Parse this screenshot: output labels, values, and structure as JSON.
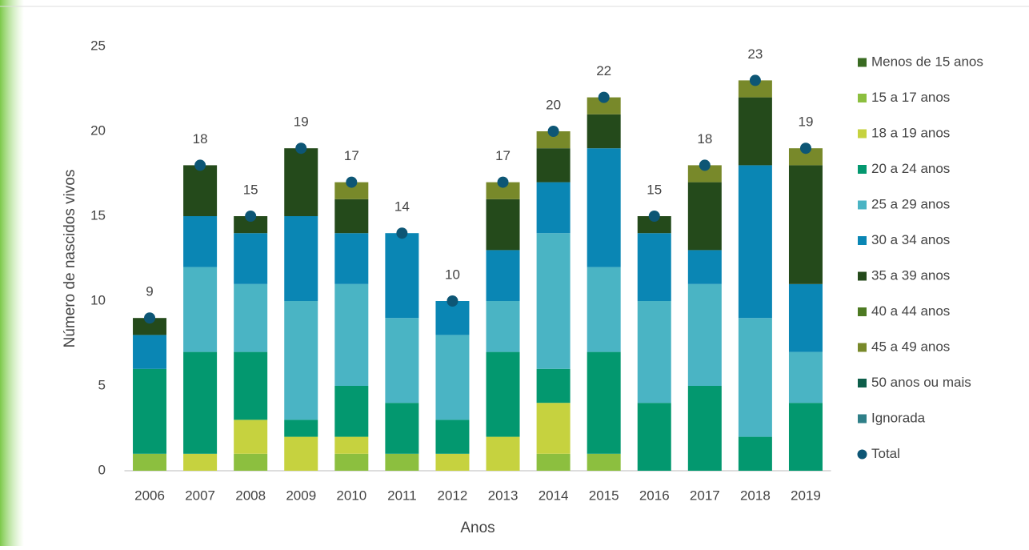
{
  "chart_data": {
    "type": "bar",
    "stacked": true,
    "x_label": "Anos",
    "y_label": "Número de nascidos vivos",
    "categories": [
      "2006",
      "2007",
      "2008",
      "2009",
      "2010",
      "2011",
      "2012",
      "2013",
      "2014",
      "2015",
      "2016",
      "2017",
      "2018",
      "2019"
    ],
    "series": [
      {
        "name": "Menos de 15 anos",
        "color": "#3a6b22",
        "values": [
          0,
          0,
          0,
          0,
          0,
          0,
          0,
          0,
          0,
          0,
          0,
          0,
          0,
          0
        ]
      },
      {
        "name": "15 a 17 anos",
        "color": "#8cbf3f",
        "values": [
          1,
          0,
          1,
          0,
          1,
          1,
          0,
          0,
          1,
          1,
          0,
          0,
          0,
          0
        ]
      },
      {
        "name": "18 a 19 anos",
        "color": "#c6d23f",
        "values": [
          0,
          1,
          2,
          2,
          1,
          0,
          1,
          2,
          3,
          0,
          0,
          0,
          0,
          0
        ]
      },
      {
        "name": "20 a 24 anos",
        "color": "#03986f",
        "values": [
          5,
          6,
          4,
          1,
          3,
          3,
          2,
          5,
          2,
          6,
          4,
          5,
          2,
          4
        ]
      },
      {
        "name": "25 a 29 anos",
        "color": "#4ab4c4",
        "values": [
          0,
          5,
          4,
          7,
          6,
          5,
          5,
          3,
          8,
          5,
          6,
          6,
          7,
          3
        ]
      },
      {
        "name": "30 a 34 anos",
        "color": "#0a86b4",
        "values": [
          2,
          3,
          3,
          5,
          3,
          5,
          2,
          3,
          3,
          7,
          4,
          2,
          9,
          4
        ]
      },
      {
        "name": "35 a 39 anos",
        "color": "#244a1b",
        "values": [
          1,
          3,
          1,
          4,
          2,
          0,
          0,
          3,
          2,
          2,
          1,
          4,
          4,
          7
        ]
      },
      {
        "name": "40 a 44 anos",
        "color": "#4d7a22",
        "values": [
          0,
          0,
          0,
          0,
          0,
          0,
          0,
          0,
          0,
          0,
          0,
          0,
          0,
          0
        ]
      },
      {
        "name": "45 a 49 anos",
        "color": "#78892a",
        "values": [
          0,
          0,
          0,
          0,
          1,
          0,
          0,
          1,
          1,
          1,
          0,
          1,
          1,
          1
        ]
      },
      {
        "name": "50 anos ou mais",
        "color": "#0d5e4a",
        "values": [
          0,
          0,
          0,
          0,
          0,
          0,
          0,
          0,
          0,
          0,
          0,
          0,
          0,
          0
        ]
      },
      {
        "name": "Ignorada",
        "color": "#2f7f88",
        "values": [
          0,
          0,
          0,
          0,
          0,
          0,
          0,
          0,
          0,
          0,
          0,
          0,
          0,
          0
        ]
      }
    ],
    "total": {
      "name": "Total",
      "color": "#0d5675",
      "values": [
        9,
        18,
        15,
        19,
        17,
        14,
        10,
        17,
        20,
        22,
        15,
        18,
        23,
        19
      ]
    },
    "ylim": [
      0,
      25
    ],
    "yticks": [
      0,
      5,
      10,
      15,
      20,
      25
    ],
    "grid": false,
    "legend": "right"
  }
}
